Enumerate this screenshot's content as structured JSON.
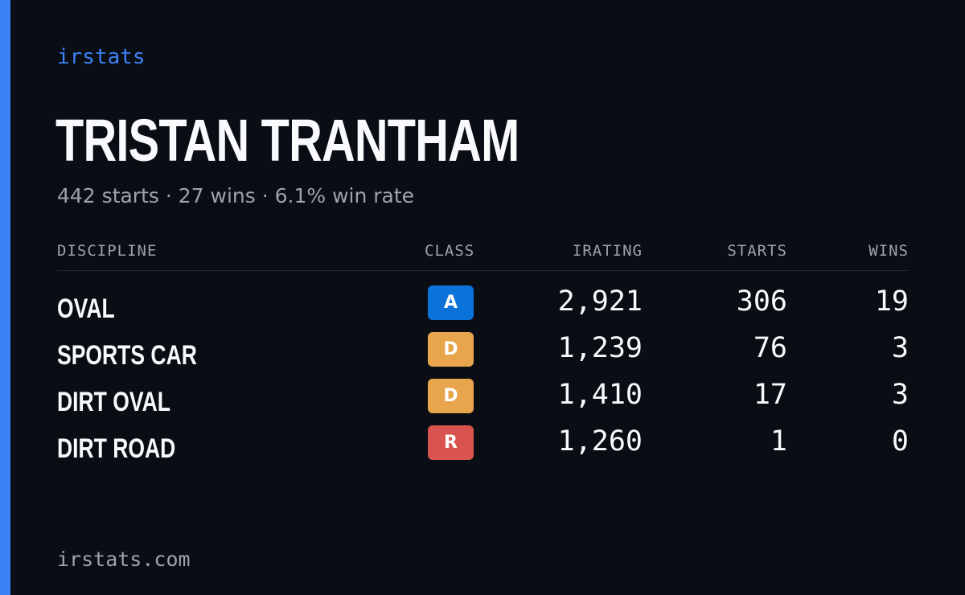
{
  "brand": "irstats",
  "driver": {
    "name": "TRISTAN TRANTHAM",
    "summary": "442 starts · 27 wins · 6.1% win rate"
  },
  "table": {
    "headers": {
      "discipline": "DISCIPLINE",
      "class": "CLASS",
      "irating": "IRATING",
      "starts": "STARTS",
      "wins": "WINS"
    },
    "rows": [
      {
        "discipline": "OVAL",
        "class": "A",
        "class_color": "#0b72d9",
        "irating": "2,921",
        "starts": "306",
        "wins": "19"
      },
      {
        "discipline": "SPORTS CAR",
        "class": "D",
        "class_color": "#e8a54b",
        "irating": "1,239",
        "starts": "76",
        "wins": "3"
      },
      {
        "discipline": "DIRT OVAL",
        "class": "D",
        "class_color": "#e8a54b",
        "irating": "1,410",
        "starts": "17",
        "wins": "3"
      },
      {
        "discipline": "DIRT ROAD",
        "class": "R",
        "class_color": "#d9534f",
        "irating": "1,260",
        "starts": "1",
        "wins": "0"
      }
    ]
  },
  "footer": "irstats.com",
  "colors": {
    "background": "#0a0d14",
    "accent": "#3b82f6",
    "muted_text": "#9ca3af",
    "text": "#f8fafc"
  }
}
